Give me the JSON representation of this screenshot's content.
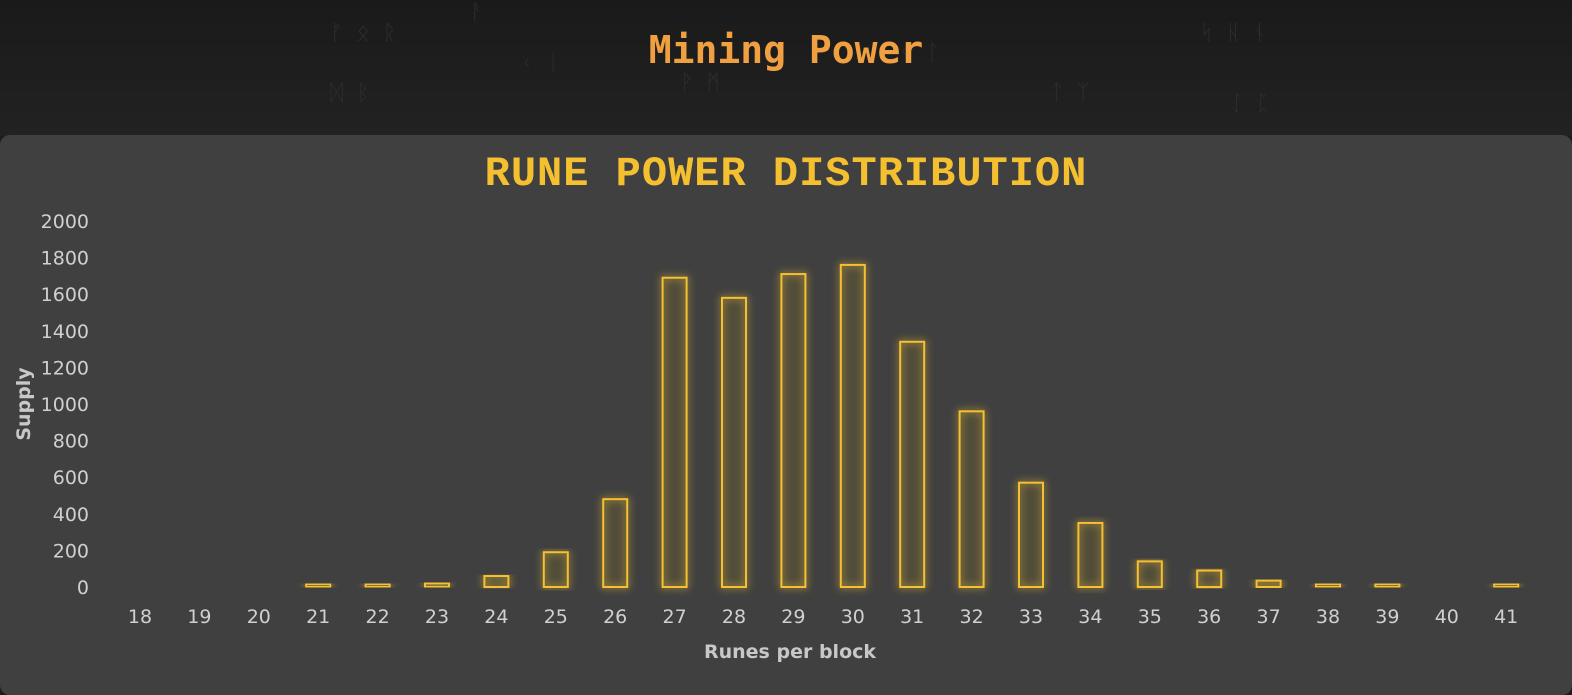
{
  "page": {
    "title": "Mining Power"
  },
  "colors": {
    "accent": "#f0a040",
    "bar": "#f5c030",
    "panel": "#404040",
    "background": "#1c1c1c"
  },
  "chart_data": {
    "type": "bar",
    "title": "RUNE POWER DISTRIBUTION",
    "xlabel": "Runes per block",
    "ylabel": "Supply",
    "ylim": [
      0,
      2000
    ],
    "yticks": [
      0,
      200,
      400,
      600,
      800,
      1000,
      1200,
      1400,
      1600,
      1800,
      2000
    ],
    "categories": [
      "18",
      "19",
      "20",
      "21",
      "22",
      "23",
      "24",
      "25",
      "26",
      "27",
      "28",
      "29",
      "30",
      "31",
      "32",
      "33",
      "34",
      "35",
      "36",
      "37",
      "38",
      "39",
      "40",
      "41"
    ],
    "values": [
      0,
      0,
      0,
      10,
      10,
      20,
      60,
      190,
      480,
      1690,
      1580,
      1710,
      1760,
      1340,
      960,
      570,
      350,
      140,
      90,
      35,
      15,
      10,
      0,
      10
    ],
    "grid": false,
    "legend": "none"
  }
}
